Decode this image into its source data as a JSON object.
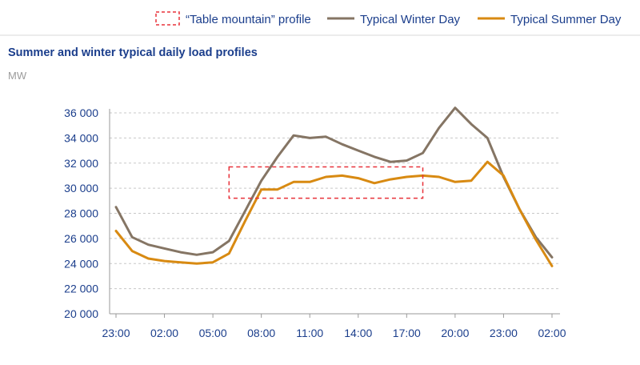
{
  "legend": {
    "table_mountain_label": "“Table mountain” profile",
    "winter_label": "Typical Winter Day",
    "summer_label": "Typical Summer Day"
  },
  "colors": {
    "winter": "#857564",
    "summer": "#d88a12",
    "table_mountain": "#e8323a",
    "grid": "#c8c8c8",
    "axis": "#9a9a9a",
    "text": "#1b3e8c",
    "unit": "#9c9c9c",
    "header_rule": "#d9d9d9"
  },
  "chart_data": {
    "type": "line",
    "title": "Summer and winter typical daily load profiles",
    "unit": "MW",
    "xlabel": "",
    "ylabel": "",
    "ylim": [
      20000,
      36000
    ],
    "yticks": [
      20000,
      22000,
      24000,
      26000,
      28000,
      30000,
      32000,
      34000,
      36000
    ],
    "ytick_labels": [
      "20 000",
      "22 000",
      "24 000",
      "26 000",
      "28 000",
      "30 000",
      "32 000",
      "34 000",
      "36 000"
    ],
    "xtick_labels": [
      "23:00",
      "02:00",
      "05:00",
      "08:00",
      "11:00",
      "14:00",
      "17:00",
      "20:00",
      "23:00",
      "02:00"
    ],
    "x_hours": [
      23,
      24,
      25,
      26,
      27,
      28,
      29,
      30,
      31,
      32,
      33,
      34,
      35,
      36,
      37,
      38,
      39,
      40,
      41,
      42,
      43,
      44,
      45,
      46,
      47,
      48,
      49,
      50
    ],
    "grid": true,
    "legend_position": "top",
    "series": [
      {
        "name": "Typical Winter Day",
        "values": [
          28500,
          26100,
          25500,
          25200,
          24900,
          24700,
          24900,
          25800,
          28200,
          30600,
          32500,
          34200,
          34000,
          34100,
          33500,
          33000,
          32500,
          32100,
          32200,
          32800,
          34800,
          36400,
          35100,
          34000,
          30900,
          28300,
          26100,
          24500
        ]
      },
      {
        "name": "Typical Summer Day",
        "values": [
          26600,
          25000,
          24400,
          24200,
          24100,
          24000,
          24100,
          24800,
          27400,
          29900,
          29900,
          30500,
          30500,
          30900,
          31000,
          30800,
          30400,
          30700,
          30900,
          31000,
          30900,
          30500,
          30600,
          32100,
          31000,
          28300,
          25900,
          23800
        ]
      }
    ],
    "annotations": [
      {
        "type": "dashed-rectangle",
        "label": "“Table mountain” profile",
        "x_range": [
          30,
          42
        ],
        "y_range": [
          29200,
          31700
        ]
      }
    ]
  }
}
